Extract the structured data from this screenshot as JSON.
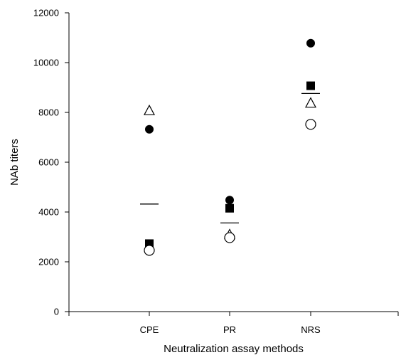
{
  "chart_data": {
    "type": "scatter",
    "title": "",
    "xlabel": "Neutralization assay methods",
    "ylabel": "NAb titers",
    "categories": [
      "CPE",
      "PR",
      "NRS"
    ],
    "ylim": [
      0,
      12000
    ],
    "yticks": [
      0,
      2000,
      4000,
      6000,
      8000,
      10000,
      12000
    ],
    "grid": false,
    "legend": "none",
    "series": [
      {
        "marker": "filled-circle",
        "values": [
          7320,
          4480,
          10780
        ]
      },
      {
        "marker": "filled-square",
        "values": [
          2730,
          4150,
          9070
        ]
      },
      {
        "marker": "open-triangle",
        "values": [
          8080,
          3100,
          8380
        ]
      },
      {
        "marker": "open-circle",
        "values": [
          2460,
          2970,
          7520
        ]
      }
    ],
    "means": [
      4320,
      3560,
      8760
    ]
  }
}
